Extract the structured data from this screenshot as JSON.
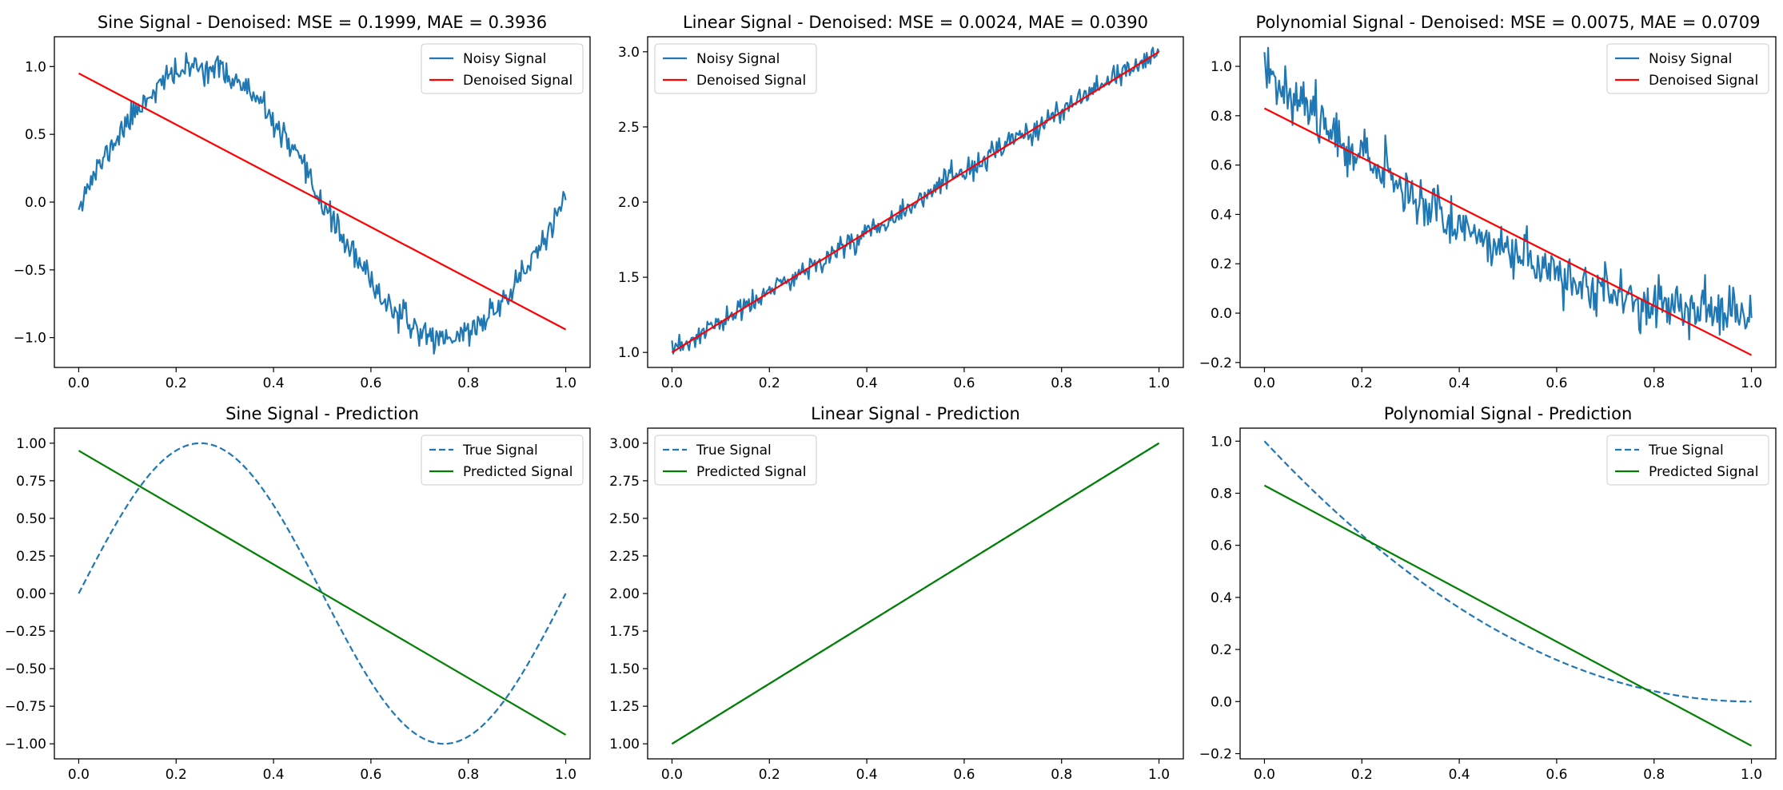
{
  "chart_data": [
    {
      "type": "line",
      "title": "Sine Signal - Denoised: MSE = 0.1999, MAE = 0.3936",
      "xlabel": "",
      "ylabel": "",
      "xlim": [
        -0.05,
        1.05
      ],
      "ylim": [
        -1.22,
        1.22
      ],
      "xticks": [
        0.0,
        0.2,
        0.4,
        0.6,
        0.8,
        1.0
      ],
      "yticks": [
        -1.0,
        -0.5,
        0.0,
        0.5,
        1.0
      ],
      "tick_decimals": 1,
      "legend": "top-right",
      "grid": false,
      "series": [
        {
          "name": "Noisy Signal",
          "color": "#1f77b4",
          "style": "solid",
          "function": "sin(2*pi*x)",
          "noise": 0.05,
          "seed": 11,
          "points": 400
        },
        {
          "name": "Denoised Signal",
          "color": "#ff0000",
          "style": "solid",
          "x": [
            0.0,
            1.0
          ],
          "y": [
            0.95,
            -0.94
          ]
        }
      ]
    },
    {
      "type": "line",
      "title": "Linear Signal - Denoised: MSE = 0.0024, MAE = 0.0390",
      "xlabel": "",
      "ylabel": "",
      "xlim": [
        -0.05,
        1.05
      ],
      "ylim": [
        0.9,
        3.1
      ],
      "xticks": [
        0.0,
        0.2,
        0.4,
        0.6,
        0.8,
        1.0
      ],
      "yticks": [
        1.0,
        1.5,
        2.0,
        2.5,
        3.0
      ],
      "tick_decimals": 1,
      "legend": "top-left",
      "grid": false,
      "series": [
        {
          "name": "Noisy Signal",
          "color": "#1f77b4",
          "style": "solid",
          "function": "2*x+1",
          "noise": 0.04,
          "seed": 23,
          "points": 400
        },
        {
          "name": "Denoised Signal",
          "color": "#ff0000",
          "style": "solid",
          "x": [
            0.0,
            1.0
          ],
          "y": [
            1.0,
            3.0
          ]
        }
      ]
    },
    {
      "type": "line",
      "title": "Polynomial Signal - Denoised: MSE = 0.0075, MAE = 0.0709",
      "xlabel": "",
      "ylabel": "",
      "xlim": [
        -0.05,
        1.05
      ],
      "ylim": [
        -0.22,
        1.12
      ],
      "xticks": [
        0.0,
        0.2,
        0.4,
        0.6,
        0.8,
        1.0
      ],
      "yticks": [
        -0.2,
        0.0,
        0.2,
        0.4,
        0.6,
        0.8,
        1.0
      ],
      "tick_decimals": 1,
      "legend": "top-right",
      "grid": false,
      "series": [
        {
          "name": "Noisy Signal",
          "color": "#1f77b4",
          "style": "solid",
          "function": "(1-x)^2",
          "noise": 0.05,
          "seed": 37,
          "points": 400
        },
        {
          "name": "Denoised Signal",
          "color": "#ff0000",
          "style": "solid",
          "x": [
            0.0,
            1.0
          ],
          "y": [
            0.83,
            -0.17
          ]
        }
      ]
    },
    {
      "type": "line",
      "title": "Sine Signal - Prediction",
      "xlabel": "",
      "ylabel": "",
      "xlim": [
        -0.05,
        1.05
      ],
      "ylim": [
        -1.1,
        1.1
      ],
      "xticks": [
        0.0,
        0.2,
        0.4,
        0.6,
        0.8,
        1.0
      ],
      "yticks": [
        -1.0,
        -0.75,
        -0.5,
        -0.25,
        0.0,
        0.25,
        0.5,
        0.75,
        1.0
      ],
      "tick_decimals": 2,
      "legend": "top-right",
      "grid": false,
      "series": [
        {
          "name": "True Signal",
          "color": "#1f77b4",
          "style": "dashed",
          "function": "sin(2*pi*x)",
          "points": 200
        },
        {
          "name": "Predicted Signal",
          "color": "#008000",
          "style": "solid",
          "x": [
            0.0,
            1.0
          ],
          "y": [
            0.95,
            -0.94
          ]
        }
      ]
    },
    {
      "type": "line",
      "title": "Linear Signal - Prediction",
      "xlabel": "",
      "ylabel": "",
      "xlim": [
        -0.05,
        1.05
      ],
      "ylim": [
        0.9,
        3.1
      ],
      "xticks": [
        0.0,
        0.2,
        0.4,
        0.6,
        0.8,
        1.0
      ],
      "yticks": [
        1.0,
        1.25,
        1.5,
        1.75,
        2.0,
        2.25,
        2.5,
        2.75,
        3.0
      ],
      "tick_decimals": 2,
      "legend": "top-left",
      "grid": false,
      "series": [
        {
          "name": "True Signal",
          "color": "#1f77b4",
          "style": "dashed",
          "function": "2*x+1",
          "points": 200
        },
        {
          "name": "Predicted Signal",
          "color": "#008000",
          "style": "solid",
          "x": [
            0.0,
            1.0
          ],
          "y": [
            1.0,
            3.0
          ]
        }
      ]
    },
    {
      "type": "line",
      "title": "Polynomial Signal - Prediction",
      "xlabel": "",
      "ylabel": "",
      "xlim": [
        -0.05,
        1.05
      ],
      "ylim": [
        -0.22,
        1.05
      ],
      "xticks": [
        0.0,
        0.2,
        0.4,
        0.6,
        0.8,
        1.0
      ],
      "yticks": [
        -0.2,
        0.0,
        0.2,
        0.4,
        0.6,
        0.8,
        1.0
      ],
      "tick_decimals": 1,
      "legend": "top-right",
      "grid": false,
      "series": [
        {
          "name": "True Signal",
          "color": "#1f77b4",
          "style": "dashed",
          "function": "(1-x)^2",
          "points": 200
        },
        {
          "name": "Predicted Signal",
          "color": "#008000",
          "style": "solid",
          "x": [
            0.0,
            1.0
          ],
          "y": [
            0.83,
            -0.17
          ]
        }
      ]
    }
  ]
}
